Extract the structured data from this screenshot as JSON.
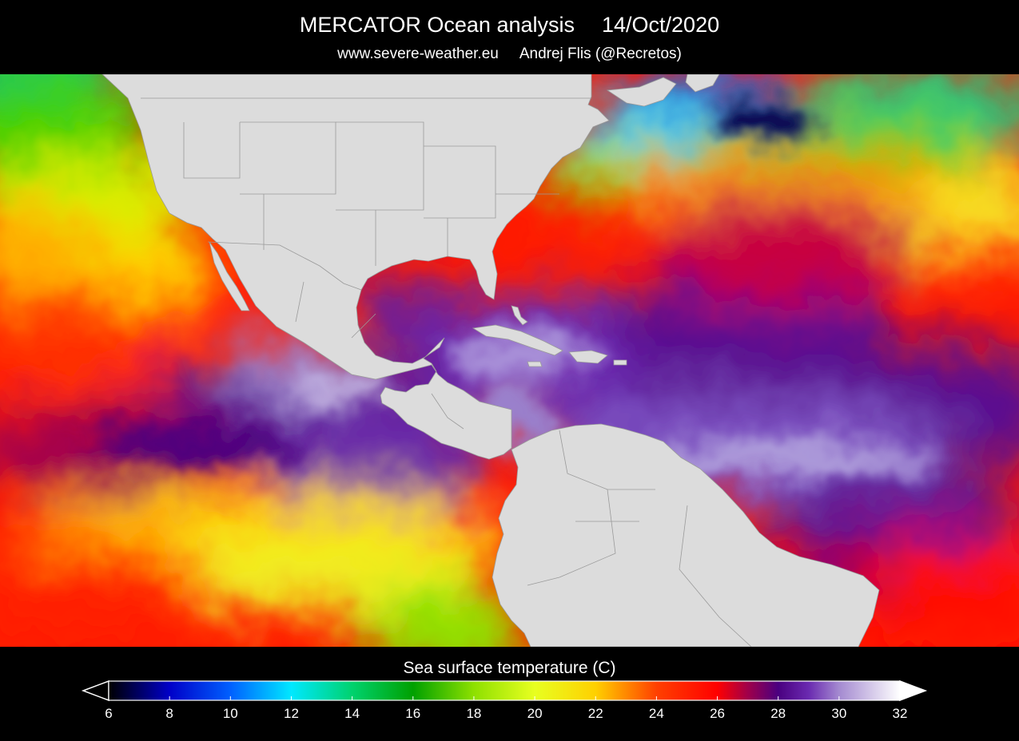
{
  "header": {
    "title": "MERCATOR Ocean analysis",
    "date": "14/Oct/2020",
    "website": "www.severe-weather.eu",
    "author": "Andrej Flis (@Recretos)"
  },
  "map": {
    "land_color": "#dcdcdc",
    "border_color": "#9a9a9a",
    "background_color": "#000000"
  },
  "colorbar": {
    "title": "Sea surface temperature (C)",
    "min": 6,
    "max": 32,
    "tick_labels": [
      "6",
      "8",
      "10",
      "12",
      "14",
      "16",
      "18",
      "20",
      "22",
      "24",
      "26",
      "28",
      "30",
      "32"
    ],
    "tick_values": [
      6,
      8,
      10,
      12,
      14,
      16,
      18,
      20,
      22,
      24,
      26,
      28,
      30,
      32
    ],
    "color_stops": [
      {
        "value": 6,
        "color": "#000000"
      },
      {
        "value": 8,
        "color": "#0000c8"
      },
      {
        "value": 10,
        "color": "#0060ff"
      },
      {
        "value": 12,
        "color": "#00e8ff"
      },
      {
        "value": 14,
        "color": "#00d26e"
      },
      {
        "value": 16,
        "color": "#00a000"
      },
      {
        "value": 18,
        "color": "#8ee000"
      },
      {
        "value": 20,
        "color": "#e8ff20"
      },
      {
        "value": 22,
        "color": "#ffd000"
      },
      {
        "value": 24,
        "color": "#ff4000"
      },
      {
        "value": 26,
        "color": "#ff0000"
      },
      {
        "value": 27,
        "color": "#a0004a"
      },
      {
        "value": 28,
        "color": "#4a0080"
      },
      {
        "value": 29,
        "color": "#6a2ab0"
      },
      {
        "value": 30,
        "color": "#a48ad0"
      },
      {
        "value": 32,
        "color": "#ffffff"
      }
    ],
    "left_arrow_color": "#000000",
    "right_arrow_color": "#ffffff"
  }
}
